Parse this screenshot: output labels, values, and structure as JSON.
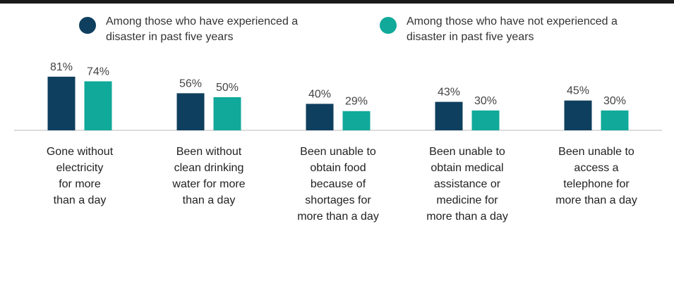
{
  "colors": {
    "series_0": "#0f3f5e",
    "series_1": "#10a99a",
    "baseline": "#bbbbbb",
    "label": "#444444"
  },
  "legend": [
    {
      "line1": "Among those who have experienced a",
      "line2": "disaster in past five years"
    },
    {
      "line1": "Among those who have not experienced a",
      "line2": "disaster in past five years"
    }
  ],
  "chart_data": {
    "type": "bar",
    "categories": [
      "Gone without electricity for more than a day",
      "Been without clean drinking water for more than a day",
      "Been unable to obtain food because of shortages for more than a day",
      "Been unable to obtain medical assistance or medicine for more than a day",
      "Been unable to access a telephone for more than a day"
    ],
    "category_lines": [
      [
        "Gone without",
        "electricity",
        "for more",
        "than a day"
      ],
      [
        "Been without",
        "clean drinking",
        "water for more",
        "than a day"
      ],
      [
        "Been unable to",
        "obtain food",
        "because of",
        "shortages for",
        "more than a day"
      ],
      [
        "Been unable to",
        "obtain medical",
        "assistance or",
        "medicine for",
        "more than a day"
      ],
      [
        "Been unable to",
        "access a",
        "telephone for",
        "more than a day"
      ]
    ],
    "series": [
      {
        "name": "Among those who have experienced a disaster in past five years",
        "values": [
          81,
          56,
          40,
          43,
          45
        ],
        "labels": [
          "81%",
          "56%",
          "40%",
          "43%",
          "45%"
        ]
      },
      {
        "name": "Among those who have not experienced a disaster in past five years",
        "values": [
          74,
          50,
          29,
          30,
          30
        ],
        "labels": [
          "74%",
          "50%",
          "29%",
          "30%",
          "30%"
        ]
      }
    ],
    "unit": "%",
    "ylim": [
      0,
      100
    ],
    "legend_position": "top",
    "grid": false
  }
}
